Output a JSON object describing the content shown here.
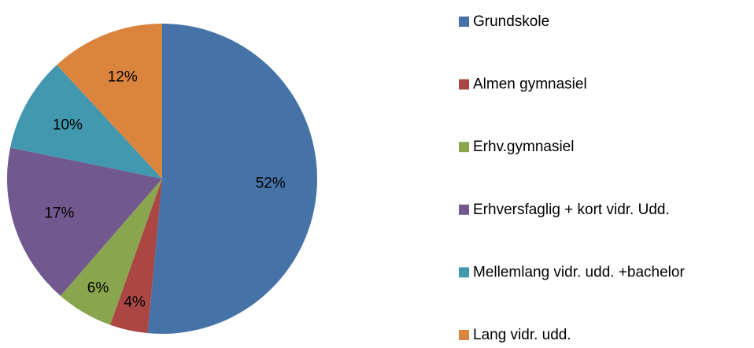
{
  "chart_data": {
    "type": "pie",
    "categories": [
      "Grundskole",
      "Almen gymnasiel",
      "Erhv.gymnasiel",
      "Erhversfaglig + kort vidr. Udd.",
      "Mellemlang vidr. udd. +bachelor",
      "Lang vidr. udd."
    ],
    "values": [
      52,
      4,
      6,
      17,
      10,
      12
    ],
    "value_labels": [
      "52%",
      "4%",
      "6%",
      "17%",
      "10%",
      "12%"
    ],
    "colors": [
      "#4572a7",
      "#aa4643",
      "#89a54e",
      "#71588f",
      "#4198af",
      "#db843d"
    ],
    "legend": "right"
  }
}
